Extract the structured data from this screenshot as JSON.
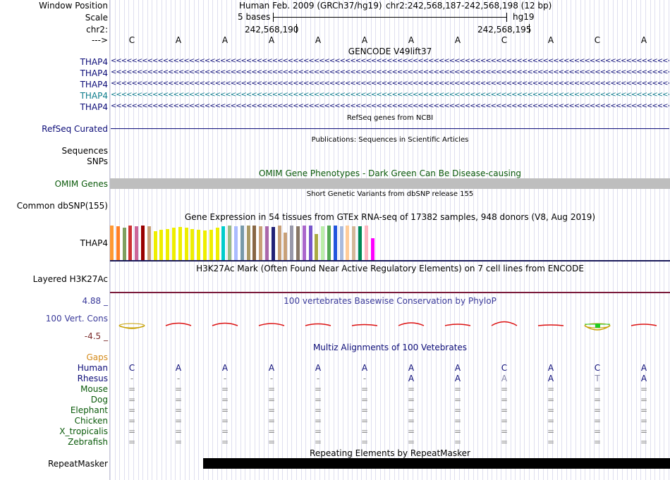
{
  "window_position": {
    "label": "Window Position",
    "assembly_text": "Human Feb. 2009 (GRCh37/hg19)",
    "coords": "chr2:242,568,187-242,568,198 (12 bp)"
  },
  "scale": {
    "label": "Scale",
    "left_text": "5 bases",
    "right_text": "hg19"
  },
  "chr": {
    "label": "chr2:",
    "pos_left": "242,568,190",
    "pos_right": "242,568,195"
  },
  "strand": {
    "label": "--->"
  },
  "sequence": [
    "C",
    "A",
    "A",
    "A",
    "A",
    "A",
    "A",
    "A",
    "C",
    "A",
    "C",
    "A"
  ],
  "gencode": {
    "title": "GENCODE V49lift37",
    "rows": [
      {
        "label": "THAP4",
        "color": "#0c0c78"
      },
      {
        "label": "THAP4",
        "color": "#0c0c78"
      },
      {
        "label": "THAP4",
        "color": "#0c0c78"
      },
      {
        "label": "THAP4",
        "color": "#0c7c8c"
      },
      {
        "label": "THAP4",
        "color": "#0c0c78"
      }
    ],
    "arrow_text": "<<<<<<<<<<<<<<<<<<<<<<<<<<<<<<<<<<<<<<<<<<<<<<<<<<<<<<<<<<<<<<<<<<<<<<<<<<<<<<<<<<<<<<<<<<<<<<<<<<<<<<<<<<<<<<<<<<<<<<<<<<<<<<<<<<"
  },
  "refseq": {
    "title": "RefSeq genes from NCBI",
    "label": "RefSeq Curated",
    "color": "#0c0c78"
  },
  "publications": {
    "title": "Publications: Sequences in Scientific Articles",
    "labels": [
      "Sequences",
      "SNPs"
    ]
  },
  "omim": {
    "title": "OMIM Gene Phenotypes - Dark Green Can Be Disease-causing",
    "label": "OMIM Genes",
    "color": "#0a5a0a",
    "bar_color": "#bebebe"
  },
  "dbsnp": {
    "title": "Short Genetic Variants from dbSNP release 155",
    "label": "Common dbSNP(155)"
  },
  "gtex": {
    "title": "Gene Expression in 54 tissues from GTEx RNA-seq of 17382 samples, 948 donors (V8, Aug 2019)",
    "label": "THAP4",
    "bars": [
      {
        "v": 0.94,
        "c": "#ff9933"
      },
      {
        "v": 0.92,
        "c": "#ff7f27"
      },
      {
        "v": 0.88,
        "c": "#7f9f5f"
      },
      {
        "v": 0.94,
        "c": "#cc3333"
      },
      {
        "v": 0.93,
        "c": "#cc6699"
      },
      {
        "v": 0.95,
        "c": "#990000"
      },
      {
        "v": 0.93,
        "c": "#c8a078"
      },
      {
        "v": 0.78,
        "c": "#eeee00"
      },
      {
        "v": 0.82,
        "c": "#eeee00"
      },
      {
        "v": 0.85,
        "c": "#eeee00"
      },
      {
        "v": 0.88,
        "c": "#eeee00"
      },
      {
        "v": 0.9,
        "c": "#eeee00"
      },
      {
        "v": 0.88,
        "c": "#eeee00"
      },
      {
        "v": 0.85,
        "c": "#eeee00"
      },
      {
        "v": 0.82,
        "c": "#eeee00"
      },
      {
        "v": 0.8,
        "c": "#eeee00"
      },
      {
        "v": 0.82,
        "c": "#eeee00"
      },
      {
        "v": 0.88,
        "c": "#eeee00"
      },
      {
        "v": 0.92,
        "c": "#00cccc"
      },
      {
        "v": 0.94,
        "c": "#99bb88"
      },
      {
        "v": 0.93,
        "c": "#aabbff"
      },
      {
        "v": 0.95,
        "c": "#7799aa"
      },
      {
        "v": 0.94,
        "c": "#aa9966"
      },
      {
        "v": 0.94,
        "c": "#886644"
      },
      {
        "v": 0.93,
        "c": "#c8a078"
      },
      {
        "v": 0.92,
        "c": "#aa66aa"
      },
      {
        "v": 0.9,
        "c": "#222277"
      },
      {
        "v": 0.95,
        "c": "#c8a078"
      },
      {
        "v": 0.75,
        "c": "#c8a078"
      },
      {
        "v": 0.94,
        "c": "#9999aa"
      },
      {
        "v": 0.93,
        "c": "#887766"
      },
      {
        "v": 0.94,
        "c": "#aa66cc"
      },
      {
        "v": 0.94,
        "c": "#7755cc"
      },
      {
        "v": 0.72,
        "c": "#aaaa44"
      },
      {
        "v": 0.93,
        "c": "#bbeeaa"
      },
      {
        "v": 0.94,
        "c": "#55aa55"
      },
      {
        "v": 0.95,
        "c": "#2255dd"
      },
      {
        "v": 0.93,
        "c": "#aabbdd"
      },
      {
        "v": 0.94,
        "c": "#ffcc99"
      },
      {
        "v": 0.93,
        "c": "#d4b89a"
      },
      {
        "v": 0.92,
        "c": "#008855"
      },
      {
        "v": 0.94,
        "c": "#ffb6c1"
      },
      {
        "v": 0.6,
        "c": "#ff00ff"
      }
    ]
  },
  "h3k27ac": {
    "title": "H3K27Ac Mark (Often Found Near Active Regulatory Elements) on 7 cell lines from ENCODE",
    "label": "Layered H3K27Ac"
  },
  "phylop": {
    "title": "100 vertebrates Basewise Conservation by PhyloP",
    "label": "100 Vert. Cons",
    "max": "4.88 _",
    "min": "-4.5 _",
    "label_color": "#3a3a9a",
    "min_color": "#7a2a2a",
    "values": [
      -0.4,
      0.35,
      0.35,
      0.3,
      0.25,
      0.15,
      0.4,
      0.2,
      0.55,
      0.1,
      -0.6,
      0.2
    ]
  },
  "multiz": {
    "title": "Multiz Alignments of 100 Vetebrates",
    "gaps_label": "Gaps",
    "gaps_color": "#d48a1a",
    "species": [
      {
        "name": "Human",
        "color": "#0c0c78",
        "bases": [
          "C",
          "A",
          "A",
          "A",
          "A",
          "A",
          "A",
          "A",
          "C",
          "A",
          "C",
          "A"
        ],
        "bcolor": "#0c0c78"
      },
      {
        "name": "Rhesus",
        "color": "#0c0c78",
        "bases": [
          "-",
          "-",
          "-",
          "-",
          "-",
          "-",
          "A",
          "A",
          "A",
          "A",
          "T",
          "A"
        ],
        "bcolor": "#0c0c78"
      },
      {
        "name": "Mouse",
        "color": "#0a5a0a",
        "bases": [
          "=",
          "=",
          "=",
          "=",
          "=",
          "=",
          "=",
          "=",
          "=",
          "=",
          "=",
          "="
        ],
        "bcolor": "#888888"
      },
      {
        "name": "Dog",
        "color": "#0a5a0a",
        "bases": [
          "=",
          "=",
          "=",
          "=",
          "=",
          "=",
          "=",
          "=",
          "=",
          "=",
          "=",
          "="
        ],
        "bcolor": "#888888"
      },
      {
        "name": "Elephant",
        "color": "#0a5a0a",
        "bases": [
          "=",
          "=",
          "=",
          "=",
          "=",
          "=",
          "=",
          "=",
          "=",
          "=",
          "=",
          "="
        ],
        "bcolor": "#888888"
      },
      {
        "name": "Chicken",
        "color": "#0a5a0a",
        "bases": [
          "=",
          "=",
          "=",
          "=",
          "=",
          "=",
          "=",
          "=",
          "=",
          "=",
          "=",
          "="
        ],
        "bcolor": "#888888"
      },
      {
        "name": "X_tropicalis",
        "color": "#0a5a0a",
        "bases": [
          "=",
          "=",
          "=",
          "=",
          "=",
          "=",
          "=",
          "=",
          "=",
          "=",
          "=",
          "="
        ],
        "bcolor": "#888888"
      },
      {
        "name": "Zebrafish",
        "color": "#0a5a0a",
        "bases": [
          "=",
          "=",
          "=",
          "=",
          "=",
          "=",
          "=",
          "=",
          "=",
          "=",
          "=",
          "="
        ],
        "bcolor": "#888888"
      }
    ]
  },
  "repeatmasker": {
    "title": "Repeating Elements by RepeatMasker",
    "label": "RepeatMasker"
  }
}
